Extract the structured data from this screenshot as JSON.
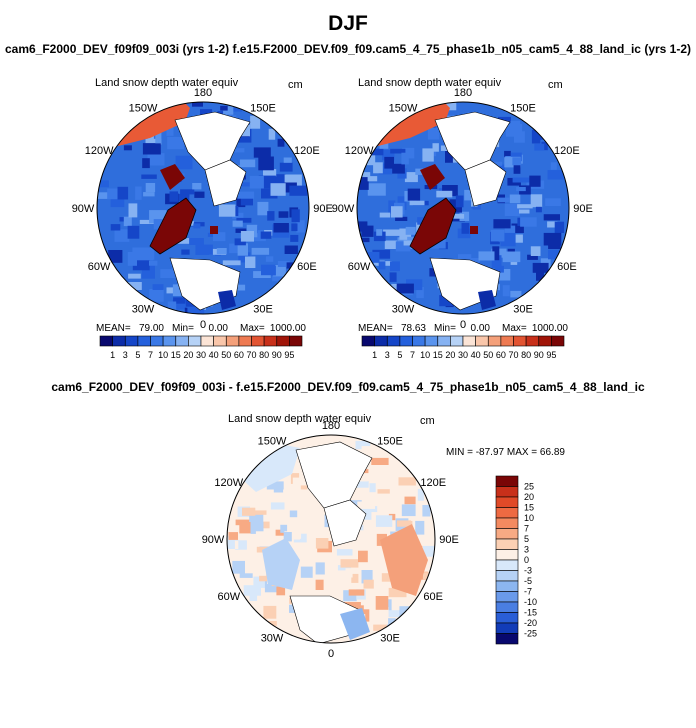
{
  "title": "DJF",
  "top_subtitle": "cam6_F2000_DEV_f09f09_003i (yrs 1-2)   f.e15.F2000_DEV.f09_f09.cam5_4_75_phase1b_n05_cam5_4_88_land_ic (yrs 1-2)",
  "diff_title": "cam6_F2000_DEV_f09f09_003i - f.e15.F2000_DEV.f09_f09.cam5_4_75_phase1b_n05_cam5_4_88_land_ic",
  "panels": [
    {
      "id": "left",
      "variable": "Land snow depth water equiv",
      "units": "cm",
      "lon_labels": [
        "180",
        "150E",
        "120E",
        "90E",
        "60E",
        "30E",
        "0",
        "30W",
        "60W",
        "90W",
        "120W",
        "150W"
      ],
      "stats": {
        "mean_label": "MEAN=",
        "mean": "79.00",
        "min_label": "Min=",
        "min": "0.00",
        "max_label": "Max=",
        "max": "1000.00"
      }
    },
    {
      "id": "right",
      "variable": "Land snow depth water equiv",
      "units": "cm",
      "lon_labels": [
        "180",
        "150E",
        "120E",
        "90E",
        "60E",
        "30E",
        "0",
        "30W",
        "60W",
        "90W",
        "120W",
        "150W"
      ],
      "stats": {
        "mean_label": "MEAN=",
        "mean": "78.63",
        "min_label": "Min=",
        "min": "0.00",
        "max_label": "Max=",
        "max": "1000.00"
      }
    },
    {
      "id": "diff",
      "variable": "Land snow depth water equiv",
      "units": "cm",
      "lon_labels": [
        "180",
        "150E",
        "120E",
        "90E",
        "60E",
        "30E",
        "0",
        "30W",
        "60W",
        "90W",
        "120W",
        "150W"
      ],
      "minmax_text": "MIN = -87.97  MAX =  66.89"
    }
  ],
  "chart_data": [
    {
      "type": "heatmap",
      "projection": "polar-stereographic-north",
      "title": "Land snow depth water equiv",
      "units": "cm",
      "mean": 79.0,
      "min": 0.0,
      "max": 1000.0,
      "colorbar_levels": [
        1,
        3,
        5,
        7,
        10,
        15,
        20,
        30,
        40,
        50,
        60,
        70,
        80,
        90,
        95
      ]
    },
    {
      "type": "heatmap",
      "projection": "polar-stereographic-north",
      "title": "Land snow depth water equiv",
      "units": "cm",
      "mean": 78.63,
      "min": 0.0,
      "max": 1000.0,
      "colorbar_levels": [
        1,
        3,
        5,
        7,
        10,
        15,
        20,
        30,
        40,
        50,
        60,
        70,
        80,
        90,
        95
      ]
    },
    {
      "type": "heatmap",
      "projection": "polar-stereographic-north",
      "title": "Land snow depth water equiv",
      "units": "cm",
      "min": -87.97,
      "max": 66.89,
      "colorbar_levels": [
        25,
        20,
        15,
        10,
        7,
        5,
        3,
        0,
        -3,
        -5,
        -7,
        -10,
        -15,
        -20,
        -25
      ]
    }
  ],
  "colors": {
    "abs_scale": [
      "#08086e",
      "#0c2ca8",
      "#1546c8",
      "#2460dc",
      "#3a78e6",
      "#5a94ee",
      "#86b2f2",
      "#b6d2f6",
      "#fbe4d6",
      "#f9c6aa",
      "#f4a07a",
      "#ee7a52",
      "#e25432",
      "#c8301a",
      "#a01408",
      "#7a0606"
    ],
    "diff_scale": [
      "#7a0606",
      "#c8301a",
      "#e04a28",
      "#ee6a42",
      "#f38a60",
      "#f7aa84",
      "#fbd0b4",
      "#fdf0e6",
      "#d8e8fa",
      "#b6d2f6",
      "#8cb6f0",
      "#6a9aea",
      "#4a7ee2",
      "#2a5ed6",
      "#123cb8",
      "#08086e"
    ]
  }
}
